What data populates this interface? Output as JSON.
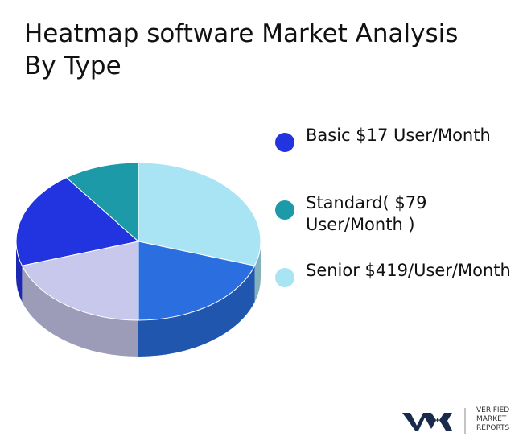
{
  "chart_data": {
    "type": "pie",
    "title": "Heatmap software Market Analysis By Type",
    "categories": [
      "Basic  $17 User/Month",
      "Standard(  $79 User/Month  )",
      "Senior  $419/User/Month",
      null,
      null
    ],
    "values": [
      20,
      10,
      30,
      20,
      20
    ],
    "colors": [
      "#2233e0",
      "#1c9aa8",
      "#a8e4f4",
      "#2a6ee0",
      "#c8c8ec"
    ],
    "legend": "right"
  },
  "logo": {
    "text": "VERIFIED MARKET REPORTS"
  }
}
